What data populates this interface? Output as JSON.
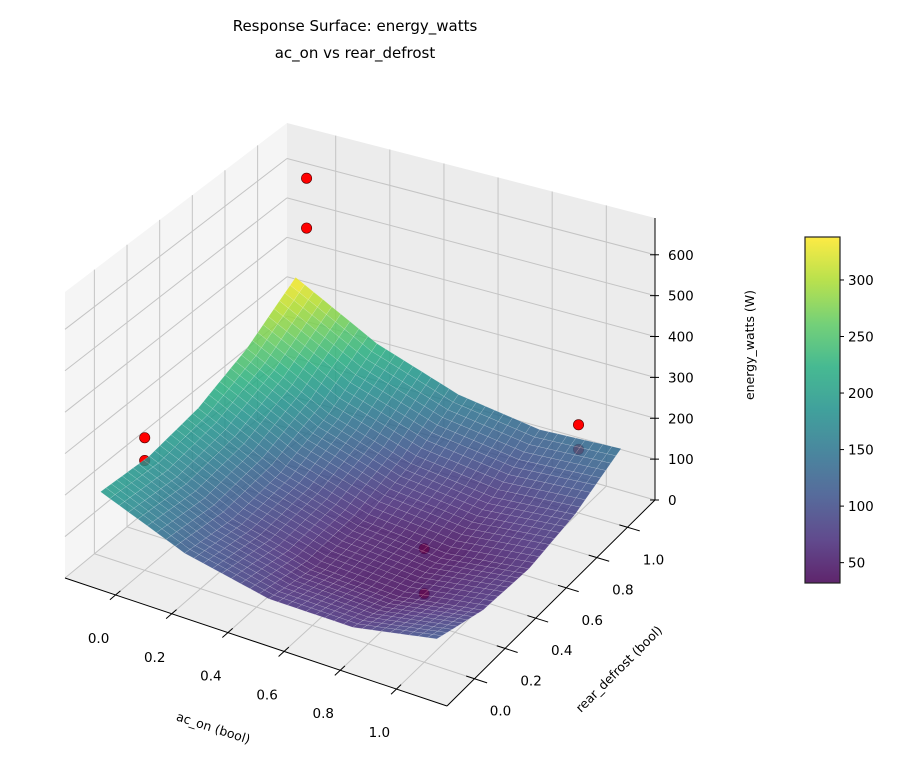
{
  "chart_data": {
    "type": "surface",
    "title": [
      "Response Surface: energy_watts",
      "ac_on vs rear_defrost"
    ],
    "xlabel": "ac_on (bool)",
    "ylabel": "rear_defrost (bool)",
    "zlabel": "energy_watts (W)",
    "xlim": [
      -0.18,
      1.18
    ],
    "ylim": [
      -0.18,
      1.18
    ],
    "zlim": [
      0,
      690
    ],
    "xticks": [
      "0.0",
      "0.2",
      "0.4",
      "0.6",
      "0.8",
      "1.0"
    ],
    "yticks": [
      "0.0",
      "0.2",
      "0.4",
      "0.6",
      "0.8",
      "1.0"
    ],
    "zticks": [
      "0",
      "100",
      "200",
      "300",
      "400",
      "500",
      "600"
    ],
    "grid": true,
    "colormap": "viridis",
    "surface": {
      "x": [
        -0.1,
        0.2,
        0.5,
        0.8,
        1.1
      ],
      "y": [
        -0.1,
        0.2,
        0.5,
        0.8,
        1.1
      ],
      "z_rows_by_y": [
        [
          200,
          118,
          75,
          73,
          110
        ],
        [
          190,
          101,
          51,
          42,
          73
        ],
        [
          210,
          114,
          58,
          41,
          65
        ],
        [
          260,
          157,
          94,
          71,
          88
        ],
        [
          340,
          230,
          160,
          130,
          140
        ]
      ]
    },
    "points": [
      {
        "x": 0,
        "y": 0,
        "z": 320
      },
      {
        "x": 0,
        "y": 0,
        "z": 265
      },
      {
        "x": 1,
        "y": 0,
        "z": 265
      },
      {
        "x": 1,
        "y": 0,
        "z": 160
      },
      {
        "x": 1,
        "y": 1,
        "z": 215
      },
      {
        "x": 1,
        "y": 1,
        "z": 155
      },
      {
        "x": 0,
        "y": 1,
        "z": 640
      },
      {
        "x": 0,
        "y": 1,
        "z": 515
      }
    ],
    "point_color": "#ff0000",
    "colorbar": {
      "range": [
        32,
        338
      ],
      "ticks": [
        "50",
        "100",
        "150",
        "200",
        "250",
        "300"
      ]
    }
  }
}
